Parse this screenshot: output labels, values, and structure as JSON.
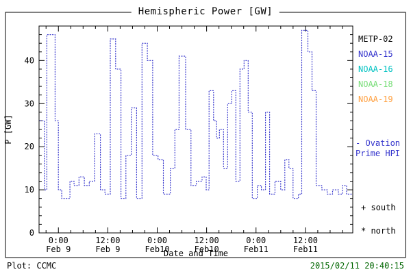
{
  "title": "Hemispheric Power [GW]",
  "footer": {
    "left": "Plot: CCMC",
    "datetime": "2015/02/11 20:40:15",
    "datetime_color": "#006600"
  },
  "legend": {
    "satellites": [
      {
        "label": "METP-02",
        "color": "#000000"
      },
      {
        "label": "NOAA-15",
        "color": "#3333cc"
      },
      {
        "label": "NOAA-16",
        "color": "#00c2c2"
      },
      {
        "label": "NOAA-18",
        "color": "#77dd77"
      },
      {
        "label": "NOAA-19",
        "color": "#ffa040"
      }
    ],
    "ovation_line1": "- Ovation",
    "ovation_line2": "Prime HPI",
    "ovation_color": "#3333cc",
    "south": "+ south",
    "north": "* north"
  },
  "chart_data": {
    "type": "line",
    "step": true,
    "line_style": "dotted",
    "line_color": "#3333cc",
    "title": "Hemispheric Power [GW]",
    "xlabel": "Date and Time",
    "ylabel": "P [GW]",
    "ylim": [
      0,
      48
    ],
    "yticks": [
      0,
      10,
      20,
      30,
      40
    ],
    "x_unit": "hours since Feb 9 00:00",
    "xlim_hours": [
      -4.7,
      71.5
    ],
    "xticks": [
      {
        "hour": 0,
        "label": "0:00",
        "sub": "Feb 9"
      },
      {
        "hour": 12,
        "label": "12:00",
        "sub": "Feb 9"
      },
      {
        "hour": 24,
        "label": "0:00",
        "sub": "Feb10"
      },
      {
        "hour": 36,
        "label": "12:00",
        "sub": "Feb10"
      },
      {
        "hour": 48,
        "label": "0:00",
        "sub": "Feb11"
      },
      {
        "hour": 60,
        "label": "12:00",
        "sub": "Feb11"
      }
    ],
    "points": [
      [
        -4.5,
        26
      ],
      [
        -3.4,
        10
      ],
      [
        -2.8,
        46
      ],
      [
        -1.6,
        46
      ],
      [
        -0.8,
        26
      ],
      [
        0.0,
        10
      ],
      [
        0.8,
        8
      ],
      [
        2.8,
        12
      ],
      [
        3.8,
        11
      ],
      [
        5.0,
        13
      ],
      [
        6.3,
        11
      ],
      [
        7.5,
        12
      ],
      [
        8.8,
        23
      ],
      [
        10.2,
        10
      ],
      [
        11.3,
        9
      ],
      [
        12.6,
        45
      ],
      [
        13.9,
        38
      ],
      [
        15.2,
        8
      ],
      [
        16.4,
        18
      ],
      [
        17.7,
        29
      ],
      [
        19.0,
        8
      ],
      [
        20.3,
        44
      ],
      [
        21.6,
        40
      ],
      [
        22.9,
        18
      ],
      [
        24.2,
        17
      ],
      [
        25.5,
        9
      ],
      [
        27.2,
        15
      ],
      [
        28.3,
        24
      ],
      [
        29.3,
        41
      ],
      [
        30.9,
        24
      ],
      [
        32.2,
        11
      ],
      [
        33.5,
        12
      ],
      [
        34.9,
        13
      ],
      [
        35.9,
        10
      ],
      [
        36.6,
        33
      ],
      [
        37.7,
        26
      ],
      [
        38.4,
        22
      ],
      [
        39.1,
        24
      ],
      [
        40.1,
        15
      ],
      [
        41.1,
        30
      ],
      [
        42.1,
        33
      ],
      [
        43.1,
        12
      ],
      [
        44.1,
        38
      ],
      [
        45.1,
        40
      ],
      [
        46.1,
        28
      ],
      [
        47.1,
        8
      ],
      [
        48.3,
        11
      ],
      [
        49.3,
        10
      ],
      [
        50.3,
        28
      ],
      [
        51.3,
        9
      ],
      [
        52.6,
        12
      ],
      [
        54.0,
        10
      ],
      [
        55.0,
        17
      ],
      [
        56.0,
        15
      ],
      [
        57.0,
        8
      ],
      [
        58.3,
        9
      ],
      [
        59.1,
        47
      ],
      [
        60.6,
        42
      ],
      [
        61.6,
        33
      ],
      [
        62.6,
        11
      ],
      [
        64.0,
        10
      ],
      [
        65.3,
        9
      ],
      [
        66.6,
        10
      ],
      [
        68.0,
        9
      ],
      [
        69.0,
        11
      ],
      [
        70.0,
        9
      ],
      [
        71.5,
        9
      ]
    ]
  }
}
